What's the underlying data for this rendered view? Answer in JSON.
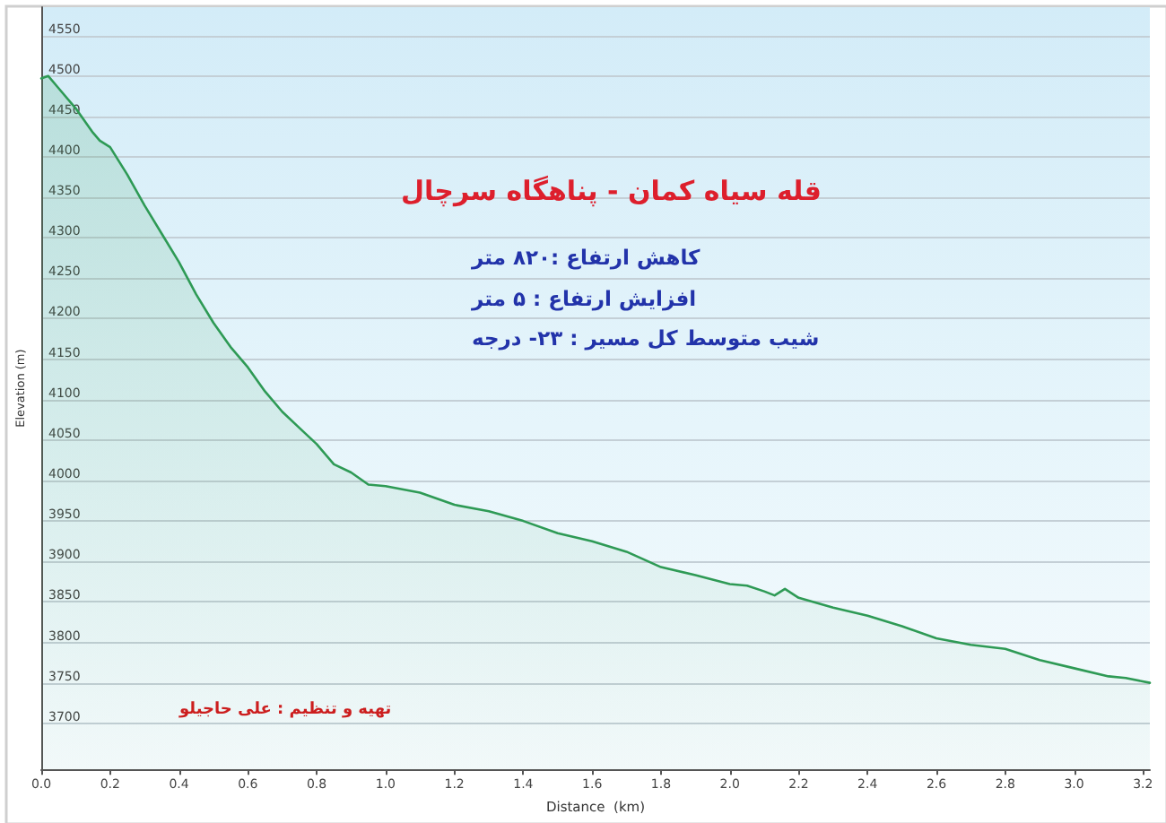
{
  "chart_data": {
    "type": "area",
    "title": "قله سیاه کمان - پناهگاه سرچال",
    "xlabel": "Distance  (km)",
    "ylabel": "Elevation (m)",
    "annotations": [
      "کاهش ارتفاع :۸۲۰ متر",
      "افزایش ارتفاع : ۵ متر",
      "شیب متوسط کل مسیر : ۲۳- درجه",
      "تهیه و تنظیم : علی حاجیلو"
    ],
    "x": [
      0,
      0.02,
      0.05,
      0.1,
      0.15,
      0.17,
      0.2,
      0.25,
      0.3,
      0.35,
      0.4,
      0.45,
      0.5,
      0.55,
      0.6,
      0.65,
      0.7,
      0.75,
      0.8,
      0.85,
      0.9,
      0.95,
      1.0,
      1.1,
      1.2,
      1.3,
      1.4,
      1.5,
      1.6,
      1.7,
      1.8,
      1.9,
      2.0,
      2.05,
      2.1,
      2.13,
      2.16,
      2.2,
      2.3,
      2.4,
      2.5,
      2.6,
      2.7,
      2.8,
      2.9,
      3.0,
      3.1,
      3.15,
      3.22
    ],
    "series": [
      {
        "color": "#2e9a55",
        "values": [
          4497,
          4500,
          4485,
          4460,
          4430,
          4420,
          4412,
          4378,
          4340,
          4305,
          4270,
          4230,
          4195,
          4165,
          4140,
          4110,
          4085,
          4065,
          4045,
          4020,
          4010,
          3995,
          3993,
          3985,
          3970,
          3962,
          3950,
          3935,
          3925,
          3912,
          3893,
          3883,
          3872,
          3870,
          3863,
          3858,
          3866,
          3855,
          3843,
          3833,
          3820,
          3805,
          3797,
          3792,
          3778,
          3768,
          3758,
          3756,
          3750
        ]
      }
    ],
    "xlim": [
      0,
      3.22
    ],
    "xticks": [
      {
        "value": 0,
        "label": "0.0"
      },
      {
        "value": 0.2,
        "label": "0.2"
      },
      {
        "value": 0.4,
        "label": "0.4"
      },
      {
        "value": 0.6,
        "label": "0.6"
      },
      {
        "value": 0.8,
        "label": "0.8"
      },
      {
        "value": 1,
        "label": "1.0"
      },
      {
        "value": 1.2,
        "label": "1.2"
      },
      {
        "value": 1.4,
        "label": "1.4"
      },
      {
        "value": 1.6,
        "label": "1.6"
      },
      {
        "value": 1.8,
        "label": "1.8"
      },
      {
        "value": 2,
        "label": "2.0"
      },
      {
        "value": 2.2,
        "label": "2.2"
      },
      {
        "value": 2.4,
        "label": "2.4"
      },
      {
        "value": 2.6,
        "label": "2.6"
      },
      {
        "value": 2.8,
        "label": "2.8"
      },
      {
        "value": 3,
        "label": "3.0"
      },
      {
        "value": 3.2,
        "label": "3.2"
      }
    ],
    "ylim": [
      3643,
      4585
    ],
    "yticks": [
      3700,
      3750,
      3800,
      3850,
      3900,
      3950,
      4000,
      4050,
      4100,
      4150,
      4200,
      4250,
      4300,
      4350,
      4400,
      4450,
      4500,
      4550
    ],
    "grid": "y",
    "marker": "none",
    "line_style": "solid"
  }
}
